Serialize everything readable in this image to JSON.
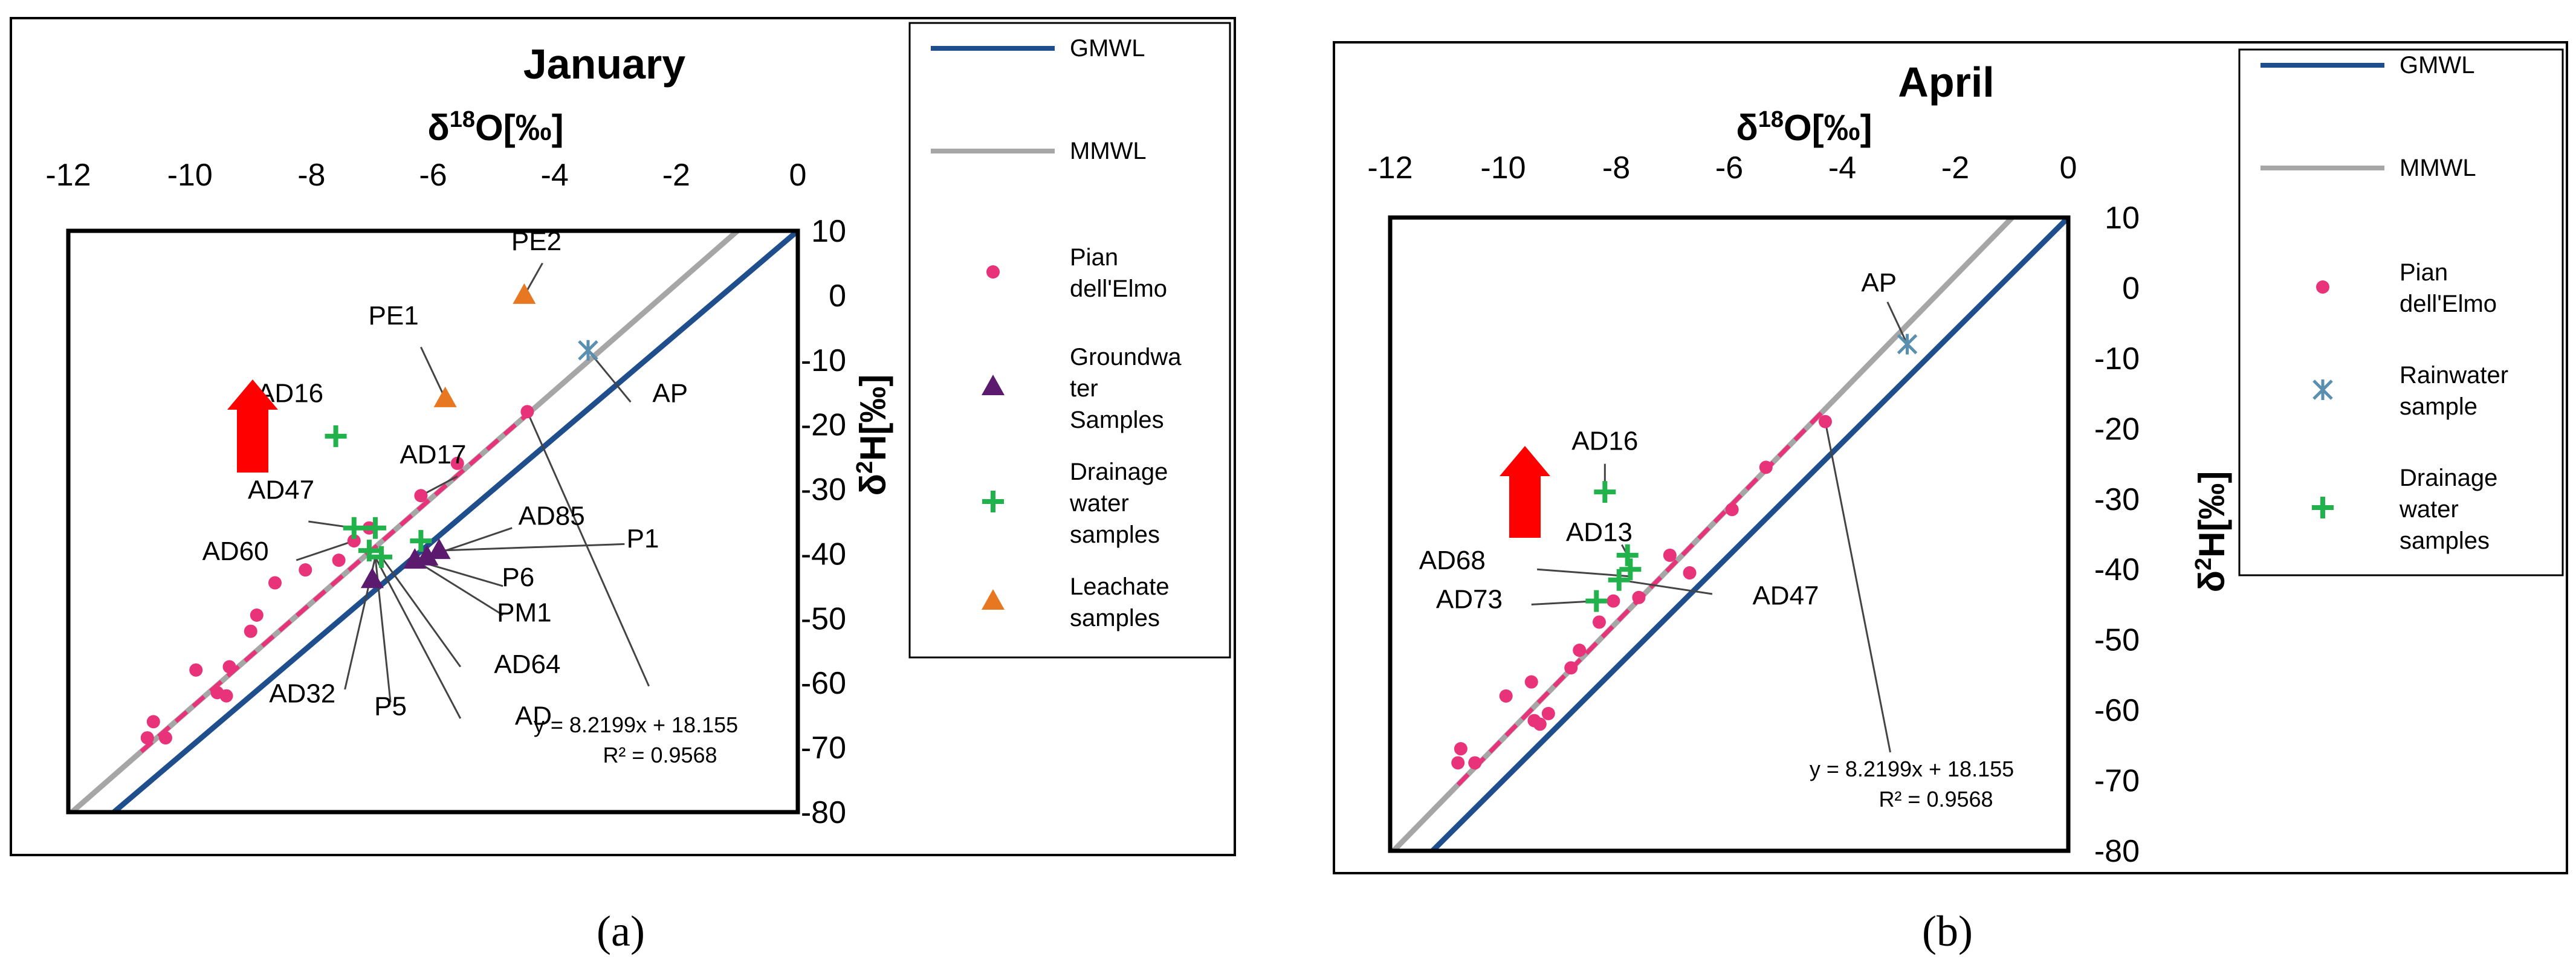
{
  "chart_data": [
    {
      "type": "scatter",
      "panel": "a",
      "caption": "(a)",
      "title": "January",
      "xlabel": "δ18O[‰]",
      "ylabel": "δ2H[‰]",
      "xlim": [
        -12,
        0
      ],
      "ylim": [
        -80,
        10
      ],
      "xticks": [
        "-12",
        "-10",
        "-8",
        "-6",
        "-4",
        "-2",
        "0"
      ],
      "yticks": [
        "10",
        "0",
        "-10",
        "-20",
        "-30",
        "-40",
        "-50",
        "-60",
        "-70",
        "-80"
      ],
      "lines": [
        {
          "name": "GMWL",
          "slope": 8,
          "intercept": 10,
          "color": "#1f4e8c"
        },
        {
          "name": "MMWL",
          "slope": 8.2199,
          "intercept": 18.155,
          "color": "#a6a6a6"
        }
      ],
      "trend": {
        "color": "#e8337a",
        "x_range": [
          -10.8,
          -4.4
        ],
        "label1": "y = 8.2199x + 18.155",
        "label2": "R² = 0.9568"
      },
      "series": [
        {
          "name": "Pian dell'Elmo",
          "legend": "Pian\ndell'Elmo",
          "marker": "circle",
          "color": "#e8337a",
          "points": [
            [
              -10.7,
              -68.5
            ],
            [
              -10.6,
              -66.0
            ],
            [
              -10.4,
              -68.5
            ],
            [
              -9.9,
              -58.0
            ],
            [
              -9.55,
              -61.5
            ],
            [
              -9.4,
              -62.0
            ],
            [
              -9.35,
              -57.5
            ],
            [
              -9.0,
              -52.0
            ],
            [
              -8.9,
              -49.5
            ],
            [
              -8.6,
              -44.5
            ],
            [
              -8.1,
              -42.5
            ],
            [
              -7.55,
              -41.0
            ],
            [
              -7.3,
              -38.0
            ],
            [
              -7.05,
              -36.0
            ],
            [
              -6.2,
              -31.0
            ],
            [
              -5.6,
              -26.0
            ],
            [
              -4.45,
              -18.0
            ]
          ]
        },
        {
          "name": "Groundwater Samples",
          "legend": "Groundwa\nter\nSamples",
          "marker": "triangle",
          "color": "#5b1a6e",
          "points": [
            [
              -7.0,
              -44.0
            ],
            [
              -6.3,
              -41.0
            ],
            [
              -6.1,
              -40.5
            ],
            [
              -5.9,
              -39.5
            ]
          ]
        },
        {
          "name": "Drainage water samples",
          "legend": "Drainage\nwater\nsamples",
          "marker": "plus",
          "color": "#22b24c",
          "points": [
            [
              -7.6,
              -21.8
            ],
            [
              -7.3,
              -36.0
            ],
            [
              -6.95,
              -36.0
            ],
            [
              -7.05,
              -39.5
            ],
            [
              -6.85,
              -40.5
            ],
            [
              -6.2,
              -38.0
            ]
          ]
        },
        {
          "name": "Leachate samples",
          "legend": "Leachate\nsamples",
          "marker": "triangle",
          "color": "#e87722",
          "points": [
            [
              -5.8,
              -16.0
            ],
            [
              -4.5,
              0.0
            ]
          ]
        },
        {
          "name": "Rainwater sample",
          "legend": "",
          "marker": "x",
          "color": "#5b8fb0",
          "points": [
            [
              -3.45,
              -8.5
            ]
          ]
        }
      ],
      "annotations": [
        {
          "text": "PE2",
          "x": -4.3,
          "y": 7
        },
        {
          "text": "PE1",
          "x": -6.65,
          "y": -4.5
        },
        {
          "text": "AD16",
          "x": -8.35,
          "y": -16.5
        },
        {
          "text": "AP",
          "x": -2.1,
          "y": -16.5
        },
        {
          "text": "AD17",
          "x": -6.0,
          "y": -26.0
        },
        {
          "text": "AD47",
          "x": -8.5,
          "y": -31.5
        },
        {
          "text": "AD85",
          "x": -4.05,
          "y": -35.5
        },
        {
          "text": "AD60",
          "x": -9.25,
          "y": -41.0
        },
        {
          "text": "P1",
          "x": -2.55,
          "y": -39.0
        },
        {
          "text": "P6",
          "x": -4.6,
          "y": -45.0
        },
        {
          "text": "PM1",
          "x": -4.5,
          "y": -50.5
        },
        {
          "text": "AD64",
          "x": -4.45,
          "y": -58.5
        },
        {
          "text": "AD32",
          "x": -8.15,
          "y": -63.0
        },
        {
          "text": "P5",
          "x": -6.7,
          "y": -65.0
        },
        {
          "text": "AD",
          "x": -4.35,
          "y": -66.5
        }
      ]
    },
    {
      "type": "scatter",
      "panel": "b",
      "caption": "(b)",
      "title": "April",
      "xlabel": "δ18O[‰]",
      "ylabel": "δ2H[‰]",
      "xlim": [
        -12,
        0
      ],
      "ylim": [
        -80,
        10
      ],
      "xticks": [
        "-12",
        "-10",
        "-8",
        "-6",
        "-4",
        "-2",
        "0"
      ],
      "yticks": [
        "10",
        "0",
        "-10",
        "-20",
        "-30",
        "-40",
        "-50",
        "-60",
        "-70",
        "-80"
      ],
      "lines": [
        {
          "name": "GMWL",
          "slope": 8,
          "intercept": 10,
          "color": "#1f4e8c"
        },
        {
          "name": "MMWL",
          "slope": 8.2199,
          "intercept": 18.155,
          "color": "#a6a6a6"
        }
      ],
      "trend": {
        "color": "#e8337a",
        "x_range": [
          -10.8,
          -4.3
        ],
        "label1": "y = 8.2199x + 18.155",
        "label2": "R² = 0.9568"
      },
      "series": [
        {
          "name": "Pian dell'Elmo",
          "legend": "Pian\ndell'Elmo",
          "marker": "circle",
          "color": "#e8337a",
          "points": [
            [
              -10.8,
              -67.5
            ],
            [
              -10.75,
              -65.5
            ],
            [
              -10.5,
              -67.5
            ],
            [
              -9.95,
              -58.0
            ],
            [
              -9.5,
              -56.0
            ],
            [
              -9.45,
              -61.5
            ],
            [
              -9.35,
              -62.0
            ],
            [
              -9.2,
              -60.5
            ],
            [
              -8.8,
              -54.0
            ],
            [
              -8.65,
              -51.5
            ],
            [
              -8.3,
              -47.5
            ],
            [
              -8.05,
              -44.5
            ],
            [
              -7.6,
              -44.0
            ],
            [
              -7.05,
              -38.0
            ],
            [
              -6.7,
              -40.5
            ],
            [
              -5.95,
              -31.5
            ],
            [
              -5.35,
              -25.5
            ],
            [
              -4.3,
              -19.0
            ]
          ]
        },
        {
          "name": "Rainwater sample",
          "legend": "Rainwater\nsample",
          "marker": "x",
          "color": "#5b8fb0",
          "points": [
            [
              -2.85,
              -8.0
            ]
          ]
        },
        {
          "name": "Drainage water samples",
          "legend": "Drainage\nwater\nsamples",
          "marker": "plus",
          "color": "#22b24c",
          "points": [
            [
              -8.2,
              -29.0
            ],
            [
              -7.8,
              -38.0
            ],
            [
              -7.75,
              -40.0
            ],
            [
              -7.95,
              -41.5
            ],
            [
              -8.35,
              -44.5
            ]
          ]
        }
      ],
      "annotations": [
        {
          "text": "AP",
          "x": -3.35,
          "y": -0.5
        },
        {
          "text": "AD16",
          "x": -8.2,
          "y": -23.0
        },
        {
          "text": "AD13",
          "x": -8.3,
          "y": -36.0
        },
        {
          "text": "AD68",
          "x": -10.9,
          "y": -40.0
        },
        {
          "text": "AD47",
          "x": -5.0,
          "y": -45.0
        },
        {
          "text": "AD73",
          "x": -10.6,
          "y": -45.5
        }
      ]
    }
  ]
}
